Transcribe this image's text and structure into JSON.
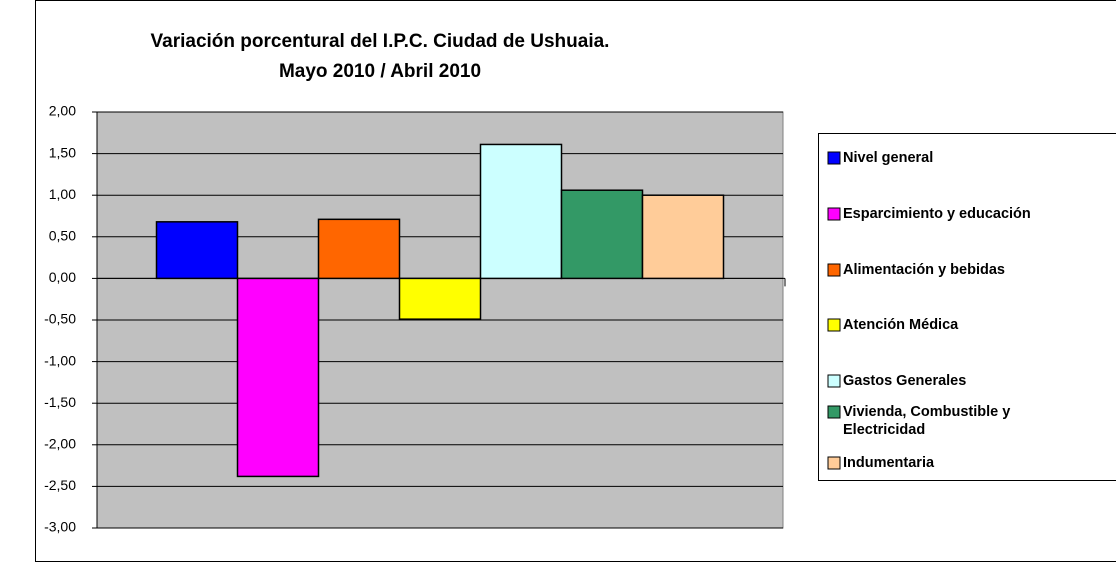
{
  "chart_data": {
    "type": "bar",
    "title": "Variación porcentural del I.P.C. Ciudad de Ushuaia.",
    "subtitle": "Mayo 2010 / Abril 2010",
    "categories": [
      null
    ],
    "series": [
      {
        "name": "Nivel general",
        "color": "#0000ff",
        "values": [
          0.68
        ]
      },
      {
        "name": "Esparcimiento y educación",
        "color": "#ff00ff",
        "values": [
          -2.38
        ]
      },
      {
        "name": "Alimentación y bebidas",
        "color": "#ff6600",
        "values": [
          0.71
        ]
      },
      {
        "name": "Atención Médica",
        "color": "#ffff00",
        "values": [
          -0.49
        ]
      },
      {
        "name": "Gastos Generales",
        "color": "#ccffff",
        "values": [
          1.61
        ]
      },
      {
        "name": "Vivienda, Combustible y Electricidad",
        "color": "#339966",
        "values": [
          1.06
        ]
      },
      {
        "name": "Indumentaria",
        "color": "#ffcc99",
        "values": [
          1.0
        ]
      }
    ],
    "ylim": [
      -3,
      2
    ],
    "yticks": [
      {
        "value": -3,
        "label": "-3,00"
      },
      {
        "value": -2.5,
        "label": "-2,50"
      },
      {
        "value": -2,
        "label": "-2,00"
      },
      {
        "value": -1.5,
        "label": "-1,50"
      },
      {
        "value": -1,
        "label": "-1,00"
      },
      {
        "value": -0.5,
        "label": "-0,50"
      },
      {
        "value": 0,
        "label": "0,00"
      },
      {
        "value": 0.5,
        "label": "0,50"
      },
      {
        "value": 1,
        "label": "1,00"
      },
      {
        "value": 1.5,
        "label": "1,50"
      },
      {
        "value": 2,
        "label": "2,00"
      }
    ],
    "grid": true,
    "legend": "right"
  }
}
